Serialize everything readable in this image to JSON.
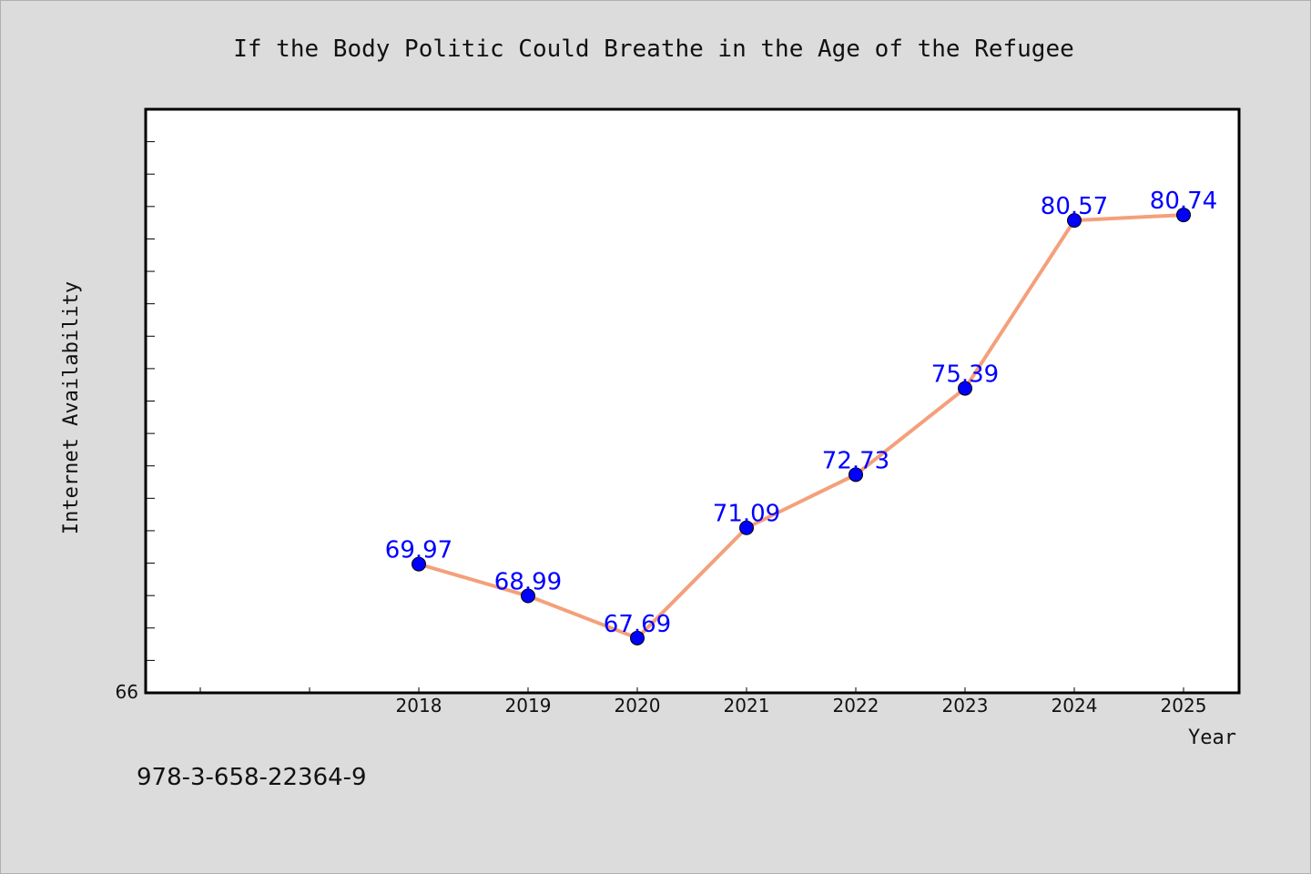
{
  "chart_data": {
    "type": "line",
    "title": "If the Body Politic Could Breathe in the Age of the Refugee",
    "xlabel": "Year",
    "ylabel": "Internet Availability",
    "categories": [
      "2018",
      "2019",
      "2020",
      "2021",
      "2022",
      "2023",
      "2024",
      "2025"
    ],
    "series": [
      {
        "values": [
          69.97,
          68.99,
          67.69,
          71.09,
          72.73,
          75.39,
          80.57,
          80.74
        ]
      }
    ],
    "data_labels": [
      "69.97",
      "68.99",
      "67.69",
      "71.09",
      "72.73",
      "75.39",
      "80.57",
      "80.74"
    ],
    "y_tick_labels": [
      "66"
    ],
    "ylim": [
      66,
      84
    ],
    "grid": false,
    "colors": {
      "line": "#f4a07a",
      "marker": "#0000ff",
      "data_label": "#0000ff",
      "background": "#dcdcdc",
      "plot_area": "#ffffff"
    }
  },
  "footnote": "978-3-658-22364-9"
}
